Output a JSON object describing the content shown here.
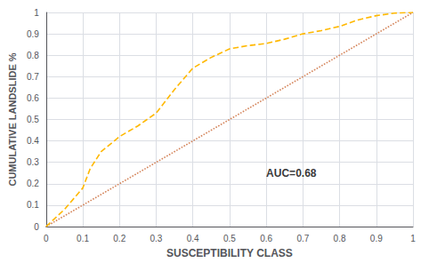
{
  "chart_data": {
    "type": "line",
    "xlabel": "SUSCEPTIBILITY CLASS",
    "ylabel": "CUMULATIVE LANDSLIDE %",
    "xlim": [
      0,
      1
    ],
    "ylim": [
      0,
      1
    ],
    "xticks": [
      0,
      0.1,
      0.2,
      0.3,
      0.4,
      0.5,
      0.6,
      0.7,
      0.8,
      0.9,
      1
    ],
    "yticks": [
      0,
      0.1,
      0.2,
      0.3,
      0.4,
      0.5,
      0.6,
      0.7,
      0.8,
      0.9,
      1
    ],
    "grid": true,
    "series": [
      {
        "color": "#D4845A",
        "line_style": "dotted",
        "x": [
          0,
          1
        ],
        "values": [
          0,
          1
        ]
      },
      {
        "color": "#FFB800",
        "line_style": "dashed",
        "x": [
          0,
          0.05,
          0.1,
          0.12,
          0.15,
          0.2,
          0.25,
          0.3,
          0.35,
          0.4,
          0.45,
          0.5,
          0.55,
          0.6,
          0.65,
          0.7,
          0.75,
          0.8,
          0.85,
          0.9,
          0.95,
          1.0
        ],
        "values": [
          0,
          0.08,
          0.18,
          0.27,
          0.35,
          0.42,
          0.47,
          0.53,
          0.64,
          0.74,
          0.79,
          0.83,
          0.845,
          0.855,
          0.875,
          0.9,
          0.915,
          0.935,
          0.965,
          0.985,
          0.997,
          1.0
        ]
      }
    ],
    "annotations": [
      {
        "text": "AUC=0.68",
        "x": 0.6,
        "y": 0.25
      }
    ]
  }
}
